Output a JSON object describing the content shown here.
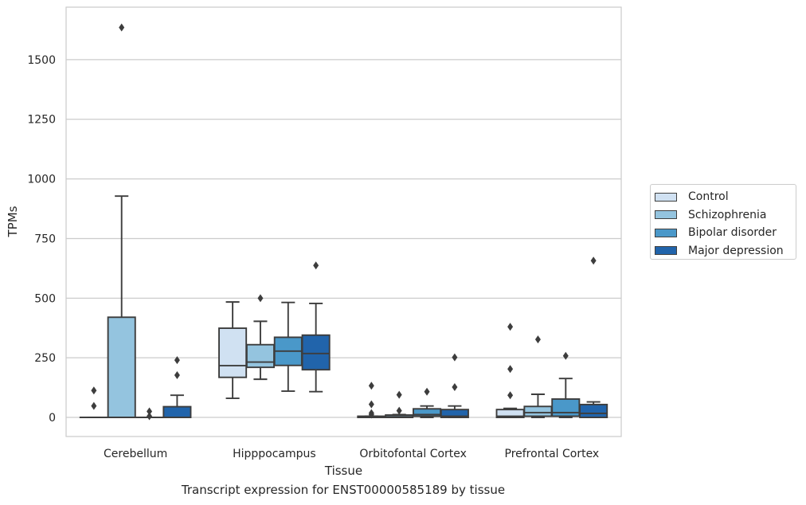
{
  "caption": "Transcript expression for ENST00000585189 by tissue",
  "chart_data": {
    "type": "box",
    "xlabel": "Tissue",
    "ylabel": "TPMs",
    "ylim": [
      -80,
      1720
    ],
    "yticks": [
      0,
      250,
      500,
      750,
      1000,
      1250,
      1500
    ],
    "grid": "horizontal",
    "legend_position": "right",
    "categories": [
      "Cerebellum",
      "Hipppocampus",
      "Orbitofontal Cortex",
      "Prefrontal Cortex"
    ],
    "series": [
      {
        "name": "Control",
        "color": "#d0e1f2",
        "boxes": [
          {
            "whisker_low": 0,
            "q1": 0,
            "median": 0,
            "q3": 0,
            "whisker_high": 0,
            "outliers": [
              48,
              113
            ]
          },
          {
            "whisker_low": 80,
            "q1": 168,
            "median": 217,
            "q3": 374,
            "whisker_high": 484,
            "outliers": []
          },
          {
            "whisker_low": 0,
            "q1": 0,
            "median": 2,
            "q3": 5,
            "whisker_high": 5,
            "outliers": [
              12,
              18,
              55,
              133
            ]
          },
          {
            "whisker_low": 0,
            "q1": 0,
            "median": 5,
            "q3": 33,
            "whisker_high": 38,
            "outliers": [
              93,
              203,
              380
            ]
          }
        ]
      },
      {
        "name": "Schizophrenia",
        "color": "#94c4df",
        "boxes": [
          {
            "whisker_low": 0,
            "q1": 0,
            "median": 0,
            "q3": 420,
            "whisker_high": 928,
            "outliers": [
              1635
            ]
          },
          {
            "whisker_low": 160,
            "q1": 210,
            "median": 232,
            "q3": 305,
            "whisker_high": 403,
            "outliers": [
              500
            ]
          },
          {
            "whisker_low": 0,
            "q1": 0,
            "median": 3,
            "q3": 10,
            "whisker_high": 12,
            "outliers": [
              28,
              95
            ]
          },
          {
            "whisker_low": 0,
            "q1": 5,
            "median": 20,
            "q3": 46,
            "whisker_high": 97,
            "outliers": [
              327
            ]
          }
        ]
      },
      {
        "name": "Bipolar disorder",
        "color": "#4a98c9",
        "boxes": [
          {
            "whisker_low": 0,
            "q1": 0,
            "median": 0,
            "q3": 0,
            "whisker_high": 0,
            "outliers": [
              5,
              25
            ]
          },
          {
            "whisker_low": 110,
            "q1": 218,
            "median": 278,
            "q3": 336,
            "whisker_high": 482,
            "outliers": []
          },
          {
            "whisker_low": 0,
            "q1": 5,
            "median": 12,
            "q3": 36,
            "whisker_high": 48,
            "outliers": [
              108
            ]
          },
          {
            "whisker_low": 0,
            "q1": 5,
            "median": 20,
            "q3": 77,
            "whisker_high": 163,
            "outliers": [
              258
            ]
          }
        ]
      },
      {
        "name": "Major depression",
        "color": "#2164ab",
        "boxes": [
          {
            "whisker_low": 0,
            "q1": 0,
            "median": 0,
            "q3": 45,
            "whisker_high": 93,
            "outliers": [
              177,
              240
            ]
          },
          {
            "whisker_low": 108,
            "q1": 200,
            "median": 268,
            "q3": 345,
            "whisker_high": 478,
            "outliers": [
              637
            ]
          },
          {
            "whisker_low": 0,
            "q1": 0,
            "median": 5,
            "q3": 33,
            "whisker_high": 48,
            "outliers": [
              127,
              252
            ]
          },
          {
            "whisker_low": 0,
            "q1": 0,
            "median": 17,
            "q3": 54,
            "whisker_high": 65,
            "outliers": [
              657
            ]
          }
        ]
      }
    ]
  }
}
